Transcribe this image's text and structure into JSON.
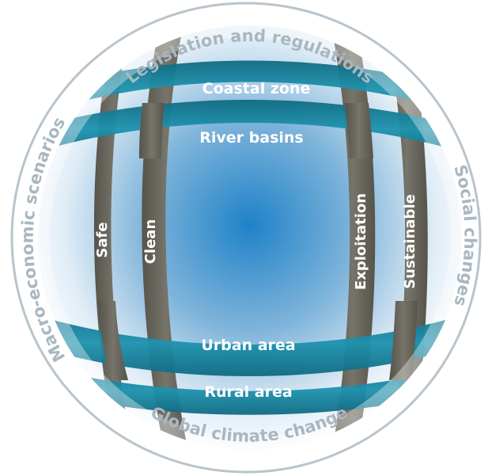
{
  "outer_ring": {
    "top": "Legislation and regulations",
    "right": "Social changes",
    "bottom": "Global climate change",
    "left": "Macro-economic scenarios"
  },
  "horizontal_bands": {
    "coastal_zone": "Coastal zone",
    "river_basins": "River basins",
    "urban_area": "Urban area",
    "rural_area": "Rural area"
  },
  "vertical_bands": {
    "safe": "Safe",
    "clean": "Clean",
    "exploitation": "Exploitation",
    "sustainable": "Sustainable"
  },
  "colors": {
    "ring_stroke": "#b9c4cc",
    "ring_text": "#a9b7c0",
    "teal_band": "#1b8aa5",
    "teal_band_dark": "#11647a",
    "grey_band": "#6d6b5c",
    "grey_band_dark": "#4d4b3f",
    "sphere_center": "#1f82c8",
    "sphere_edge": "#ffffff",
    "band_text": "#ffffff"
  }
}
